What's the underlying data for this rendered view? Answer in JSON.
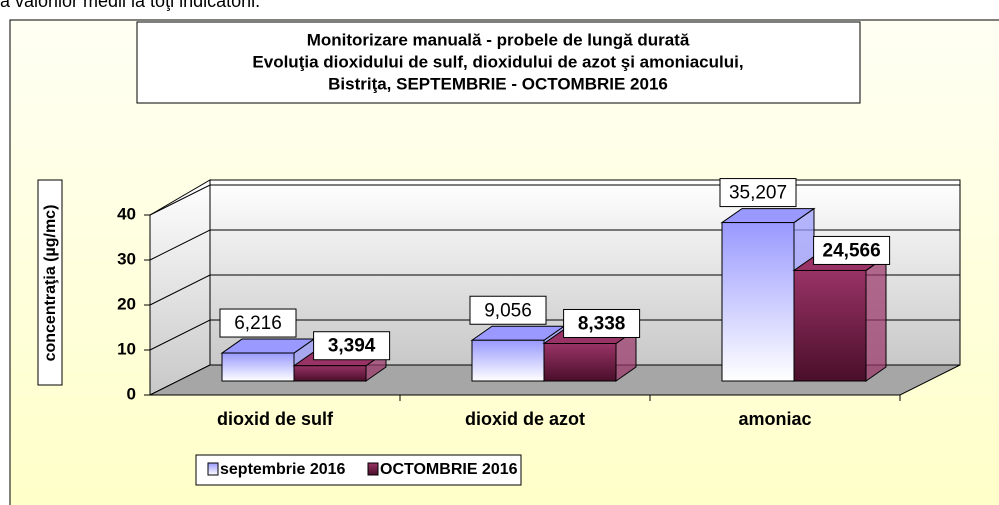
{
  "caption": "a valorilor medii la toţi indicatorii.",
  "chart_data": {
    "type": "bar3d",
    "title": [
      "Monitorizare manuală - probele de lungă durată",
      "Evoluţia dioxidului de sulf, dioxidului de azot şi amoniacului,",
      "Bistriţa,  SEPTEMBRIE  - OCTOMBRIE  2016"
    ],
    "y_label": "concentraţia (µg/mc)",
    "categories": [
      "dioxid de sulf",
      "dioxid de azot",
      "amoniac"
    ],
    "series": [
      {
        "name": "septembrie 2016",
        "color": "#9999ff",
        "values": [
          6.216,
          9.056,
          35.207
        ],
        "value_labels": [
          "6,216",
          "9,056",
          "35,207"
        ]
      },
      {
        "name": "OCTOMBRIE 2016",
        "color": "#993366",
        "values": [
          3.394,
          8.338,
          24.566
        ],
        "value_labels": [
          "3,394",
          "8,338",
          "24,566"
        ]
      }
    ],
    "ylim": [
      0,
      40
    ],
    "yticks": [
      0,
      10,
      20,
      30,
      40
    ],
    "grid": true,
    "legend": "bottom"
  }
}
